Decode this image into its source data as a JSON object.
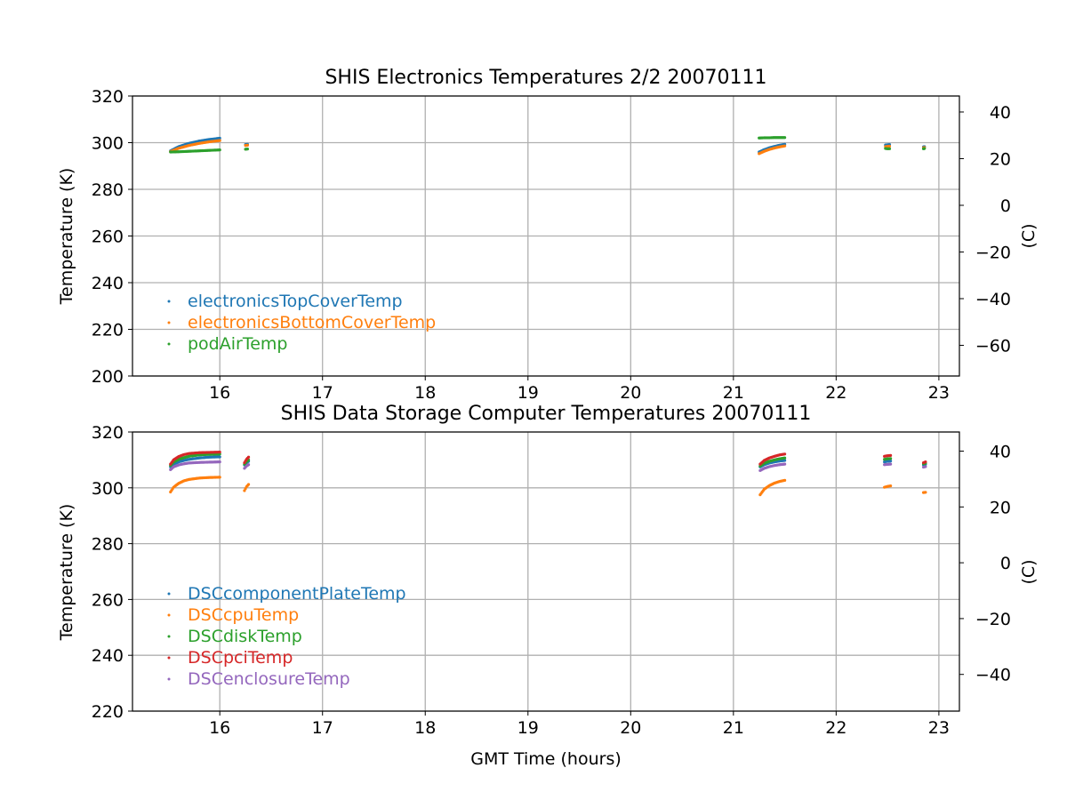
{
  "chart_data": [
    {
      "type": "scatter",
      "title": "SHIS Electronics Temperatures 2/2 20070111",
      "xlabel": "",
      "ylabel": "Temperature (K)",
      "ylabel_right": "(C)",
      "xlim": [
        15.15,
        23.2
      ],
      "ylim": [
        200,
        320
      ],
      "xticks": [
        16,
        17,
        18,
        19,
        20,
        21,
        22,
        23
      ],
      "yticks": [
        200,
        220,
        240,
        260,
        280,
        300,
        320
      ],
      "yticks_right": [
        40,
        20,
        0,
        -20,
        -40,
        -60
      ],
      "grid": true,
      "legend_position": "lower-left",
      "series": [
        {
          "name": "electronicsTopCoverTemp",
          "color": "#1f77b4",
          "segments": [
            {
              "x": [
                15.52,
                15.6,
                15.7,
                15.8,
                15.9,
                16.0
              ],
              "y": [
                296.5,
                298.3,
                299.7,
                300.7,
                301.4,
                301.9
              ]
            },
            {
              "x": [
                16.25,
                16.27
              ],
              "y": [
                299.2,
                299.3
              ]
            },
            {
              "x": [
                21.25,
                21.3,
                21.35,
                21.4,
                21.45,
                21.5
              ],
              "y": [
                296.0,
                297.0,
                297.8,
                298.4,
                298.9,
                299.3
              ]
            },
            {
              "x": [
                22.48,
                22.5,
                22.52
              ],
              "y": [
                299.0,
                299.1,
                299.2
              ]
            },
            {
              "x": [
                22.85,
                22.86
              ],
              "y": [
                298.2,
                298.3
              ]
            }
          ]
        },
        {
          "name": "electronicsBottomCoverTemp",
          "color": "#ff7f0e",
          "segments": [
            {
              "x": [
                15.52,
                15.6,
                15.7,
                15.8,
                15.9,
                16.0
              ],
              "y": [
                296.2,
                297.6,
                298.8,
                299.7,
                300.4,
                300.9
              ]
            },
            {
              "x": [
                16.25,
                16.27
              ],
              "y": [
                298.8,
                298.9
              ]
            },
            {
              "x": [
                21.25,
                21.3,
                21.35,
                21.4,
                21.45,
                21.5
              ],
              "y": [
                295.3,
                296.3,
                297.1,
                297.7,
                298.2,
                298.6
              ]
            },
            {
              "x": [
                22.48,
                22.5,
                22.52
              ],
              "y": [
                298.3,
                298.4,
                298.5
              ]
            },
            {
              "x": [
                22.85,
                22.86
              ],
              "y": [
                297.8,
                297.9
              ]
            }
          ]
        },
        {
          "name": "podAirTemp",
          "color": "#2ca02c",
          "segments": [
            {
              "x": [
                15.52,
                15.6,
                15.7,
                15.8,
                15.9,
                16.0
              ],
              "y": [
                296.0,
                296.1,
                296.3,
                296.5,
                296.7,
                296.9
              ]
            },
            {
              "x": [
                16.25,
                16.27
              ],
              "y": [
                297.2,
                297.3
              ]
            },
            {
              "x": [
                21.25,
                21.3,
                21.35,
                21.4,
                21.45,
                21.5
              ],
              "y": [
                302.0,
                302.1,
                302.1,
                302.2,
                302.2,
                302.2
              ]
            },
            {
              "x": [
                22.48,
                22.5,
                22.52
              ],
              "y": [
                297.5,
                297.4,
                297.4
              ]
            },
            {
              "x": [
                22.85,
                22.86
              ],
              "y": [
                297.4,
                297.5
              ]
            }
          ]
        }
      ]
    },
    {
      "type": "scatter",
      "title": "SHIS Data Storage Computer Temperatures 20070111",
      "xlabel": "GMT Time (hours)",
      "ylabel": "Temperature (K)",
      "ylabel_right": "(C)",
      "xlim": [
        15.15,
        23.2
      ],
      "ylim": [
        220,
        320
      ],
      "xticks": [
        16,
        17,
        18,
        19,
        20,
        21,
        22,
        23
      ],
      "yticks": [
        220,
        240,
        260,
        280,
        300,
        320
      ],
      "yticks_right": [
        40,
        20,
        0,
        -20,
        -40
      ],
      "grid": true,
      "legend_position": "lower-left",
      "series": [
        {
          "name": "DSCcomponentPlateTemp",
          "color": "#1f77b4",
          "segments": [
            {
              "x": [
                15.52,
                15.55,
                15.6,
                15.65,
                15.7,
                15.8,
                15.9,
                16.0
              ],
              "y": [
                307.5,
                308.5,
                309.3,
                309.8,
                310.2,
                310.7,
                311.0,
                311.1
              ]
            },
            {
              "x": [
                16.24,
                16.26,
                16.28
              ],
              "y": [
                308.2,
                309.0,
                309.5
              ]
            },
            {
              "x": [
                21.26,
                21.3,
                21.35,
                21.4,
                21.45,
                21.5
              ],
              "y": [
                307.5,
                308.3,
                308.9,
                309.3,
                309.6,
                309.8
              ]
            },
            {
              "x": [
                22.47,
                22.5,
                22.53
              ],
              "y": [
                309.3,
                309.5,
                309.6
              ]
            },
            {
              "x": [
                22.85,
                22.87
              ],
              "y": [
                308.2,
                308.4
              ]
            }
          ]
        },
        {
          "name": "DSCcpuTemp",
          "color": "#ff7f0e",
          "segments": [
            {
              "x": [
                15.52,
                15.55,
                15.6,
                15.65,
                15.7,
                15.8,
                15.9,
                16.0
              ],
              "y": [
                298.5,
                300.2,
                301.6,
                302.5,
                303.0,
                303.5,
                303.7,
                303.8
              ]
            },
            {
              "x": [
                16.24,
                16.26,
                16.28
              ],
              "y": [
                299.0,
                300.4,
                301.2
              ]
            },
            {
              "x": [
                21.26,
                21.3,
                21.35,
                21.4,
                21.45,
                21.5
              ],
              "y": [
                297.5,
                299.5,
                300.8,
                301.7,
                302.3,
                302.7
              ]
            },
            {
              "x": [
                22.47,
                22.5,
                22.53
              ],
              "y": [
                300.2,
                300.5,
                300.7
              ]
            },
            {
              "x": [
                22.85,
                22.87
              ],
              "y": [
                298.3,
                298.4
              ]
            }
          ]
        },
        {
          "name": "DSCdiskTemp",
          "color": "#2ca02c",
          "segments": [
            {
              "x": [
                15.52,
                15.55,
                15.6,
                15.65,
                15.7,
                15.8,
                15.9,
                16.0
              ],
              "y": [
                308.0,
                309.2,
                310.2,
                310.8,
                311.3,
                311.8,
                312.0,
                312.1
              ]
            },
            {
              "x": [
                16.24,
                16.26,
                16.28
              ],
              "y": [
                308.5,
                309.4,
                310.0
              ]
            },
            {
              "x": [
                21.26,
                21.3,
                21.35,
                21.4,
                21.45,
                21.5
              ],
              "y": [
                307.8,
                308.8,
                309.5,
                310.0,
                310.4,
                310.7
              ]
            },
            {
              "x": [
                22.47,
                22.5,
                22.53
              ],
              "y": [
                310.2,
                310.4,
                310.5
              ]
            },
            {
              "x": [
                22.85,
                22.87
              ],
              "y": [
                308.6,
                308.8
              ]
            }
          ]
        },
        {
          "name": "DSCpciTemp",
          "color": "#d62728",
          "segments": [
            {
              "x": [
                15.52,
                15.55,
                15.6,
                15.65,
                15.7,
                15.8,
                15.9,
                16.0
              ],
              "y": [
                308.5,
                310.0,
                311.2,
                311.9,
                312.3,
                312.6,
                312.7,
                312.8
              ]
            },
            {
              "x": [
                16.24,
                16.26,
                16.28
              ],
              "y": [
                309.0,
                310.2,
                311.0
              ]
            },
            {
              "x": [
                21.26,
                21.3,
                21.35,
                21.4,
                21.45,
                21.5
              ],
              "y": [
                308.5,
                309.8,
                310.7,
                311.3,
                311.8,
                312.1
              ]
            },
            {
              "x": [
                22.47,
                22.5,
                22.53
              ],
              "y": [
                311.3,
                311.5,
                311.6
              ]
            },
            {
              "x": [
                22.85,
                22.87
              ],
              "y": [
                309.0,
                309.3
              ]
            }
          ]
        },
        {
          "name": "DSCenclosureTemp",
          "color": "#9467bd",
          "segments": [
            {
              "x": [
                15.52,
                15.55,
                15.6,
                15.65,
                15.7,
                15.8,
                15.9,
                16.0
              ],
              "y": [
                306.5,
                307.5,
                308.2,
                308.6,
                308.9,
                309.1,
                309.2,
                309.3
              ]
            },
            {
              "x": [
                16.24,
                16.26,
                16.28
              ],
              "y": [
                307.0,
                307.8,
                308.3
              ]
            },
            {
              "x": [
                21.26,
                21.3,
                21.35,
                21.4,
                21.45,
                21.5
              ],
              "y": [
                306.2,
                307.0,
                307.6,
                308.0,
                308.3,
                308.5
              ]
            },
            {
              "x": [
                22.47,
                22.5,
                22.53
              ],
              "y": [
                308.3,
                308.4,
                308.5
              ]
            },
            {
              "x": [
                22.85,
                22.87
              ],
              "y": [
                307.4,
                307.6
              ]
            }
          ]
        }
      ]
    }
  ]
}
